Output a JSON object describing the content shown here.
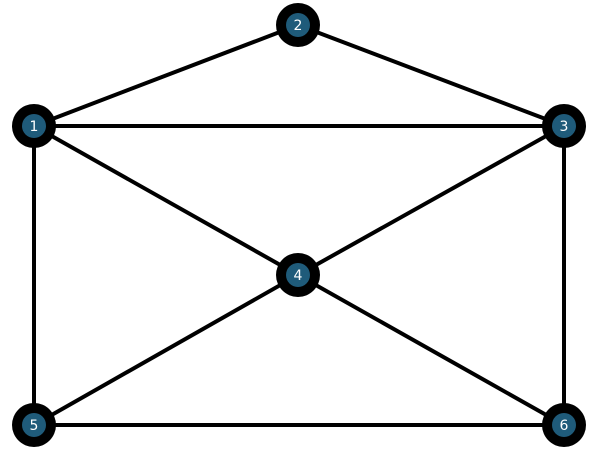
{
  "colors": {
    "edge": "#000000",
    "node_ring": "#000000",
    "node_fill": "#1f5b7a",
    "label": "#ffffff",
    "background": "#ffffff"
  },
  "nodes": [
    {
      "id": "1",
      "label": "1"
    },
    {
      "id": "2",
      "label": "2"
    },
    {
      "id": "3",
      "label": "3"
    },
    {
      "id": "4",
      "label": "4"
    },
    {
      "id": "5",
      "label": "5"
    },
    {
      "id": "6",
      "label": "6"
    }
  ],
  "edges": [
    [
      "1",
      "2"
    ],
    [
      "2",
      "3"
    ],
    [
      "1",
      "3"
    ],
    [
      "1",
      "4"
    ],
    [
      "3",
      "4"
    ],
    [
      "1",
      "5"
    ],
    [
      "3",
      "6"
    ],
    [
      "4",
      "5"
    ],
    [
      "4",
      "6"
    ],
    [
      "5",
      "6"
    ]
  ]
}
